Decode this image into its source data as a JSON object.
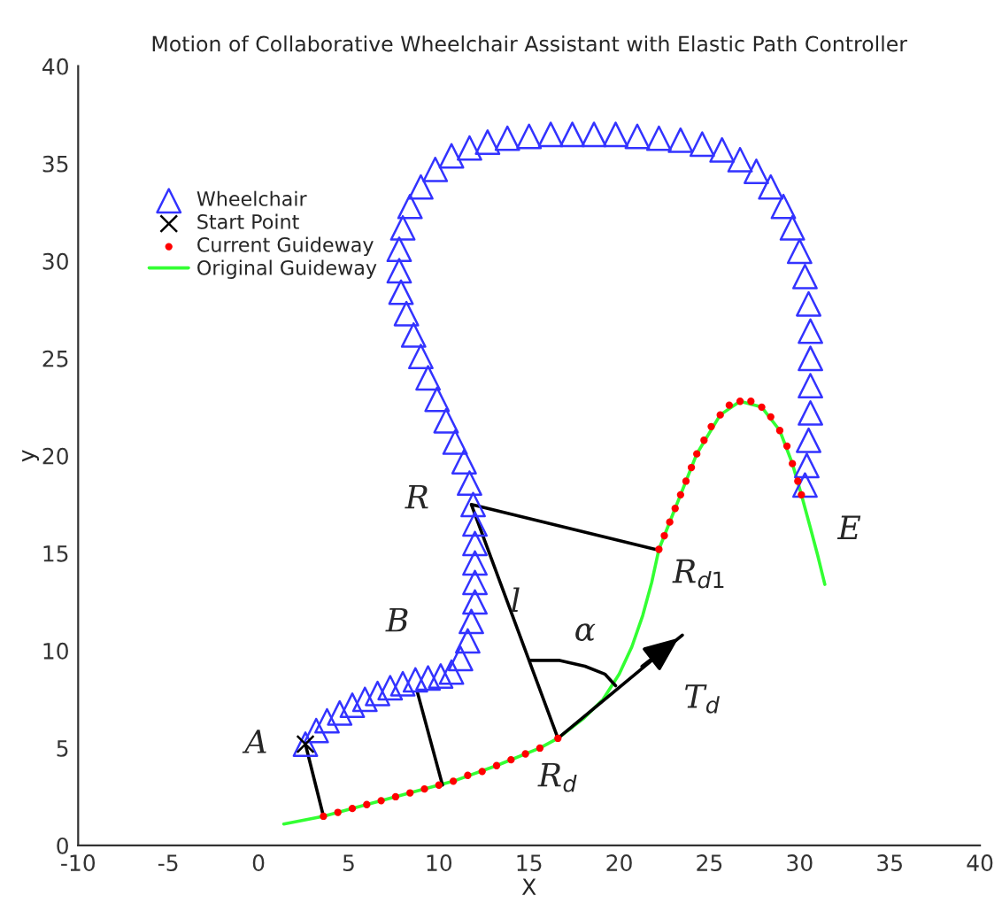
{
  "chart_data": {
    "type": "scatter",
    "title": "Motion of Collaborative Wheelchair Assistant with Elastic Path Controller",
    "xlabel": "X",
    "ylabel": "y",
    "xlim": [
      -10,
      40
    ],
    "ylim": [
      0,
      40
    ],
    "xticks": [
      -10,
      -5,
      0,
      5,
      10,
      15,
      20,
      25,
      30,
      35,
      40
    ],
    "yticks": [
      0,
      5,
      10,
      15,
      20,
      25,
      30,
      35,
      40
    ],
    "legend": "top left",
    "series": [
      {
        "name": "Wheelchair",
        "marker": "triangle",
        "color": "#3333ff",
        "x": [
          2.6,
          3.2,
          3.8,
          4.5,
          5.2,
          5.9,
          6.6,
          7.3,
          8.0,
          8.7,
          9.4,
          10.1,
          10.7,
          11.2,
          11.6,
          11.8,
          12.0,
          12.0,
          12.0,
          12.0,
          12.0,
          11.9,
          11.7,
          11.4,
          10.9,
          10.4,
          9.9,
          9.4,
          9.0,
          8.6,
          8.2,
          7.9,
          7.8,
          7.8,
          8.0,
          8.4,
          9.0,
          9.8,
          10.7,
          11.7,
          12.7,
          13.8,
          15.0,
          16.2,
          17.4,
          18.6,
          19.8,
          21.0,
          22.2,
          23.4,
          24.6,
          25.7,
          26.7,
          27.6,
          28.4,
          29.1,
          29.6,
          30.0,
          30.3,
          30.5,
          30.6,
          30.6,
          30.6,
          30.6,
          30.5,
          30.4,
          30.3
        ],
        "values": [
          5.2,
          5.9,
          6.4,
          6.8,
          7.2,
          7.5,
          7.8,
          8.1,
          8.3,
          8.5,
          8.6,
          8.7,
          8.9,
          9.6,
          10.5,
          11.5,
          12.5,
          13.5,
          14.5,
          15.5,
          16.5,
          17.5,
          18.6,
          19.7,
          20.7,
          21.8,
          22.9,
          24.0,
          25.1,
          26.2,
          27.3,
          28.4,
          29.5,
          30.6,
          31.7,
          32.8,
          33.8,
          34.7,
          35.4,
          35.8,
          36.1,
          36.3,
          36.4,
          36.5,
          36.5,
          36.5,
          36.5,
          36.4,
          36.3,
          36.2,
          36.0,
          35.7,
          35.2,
          34.6,
          33.8,
          32.8,
          31.7,
          30.5,
          29.2,
          27.8,
          26.4,
          25.0,
          23.6,
          22.2,
          20.8,
          19.5,
          18.5
        ]
      },
      {
        "name": "Start Point",
        "marker": "cross",
        "color": "#000000",
        "x": [
          2.6
        ],
        "values": [
          5.2
        ]
      },
      {
        "name": "Current Guideway",
        "marker": "circle",
        "color": "#ff0000",
        "x": [
          3.6,
          4.4,
          5.2,
          6.0,
          6.8,
          7.6,
          8.4,
          9.2,
          10.0,
          10.8,
          11.6,
          12.4,
          13.2,
          14.0,
          14.8,
          15.6,
          16.6,
          22.2,
          22.5,
          22.8,
          23.1,
          23.4,
          23.7,
          24.0,
          24.3,
          24.7,
          25.1,
          25.6,
          26.1,
          26.7,
          27.3,
          27.9,
          28.4,
          28.9,
          29.3,
          29.6,
          29.9,
          30.1
        ],
        "values": [
          1.5,
          1.7,
          1.9,
          2.1,
          2.3,
          2.5,
          2.7,
          2.9,
          3.1,
          3.3,
          3.6,
          3.8,
          4.1,
          4.4,
          4.7,
          5.0,
          5.5,
          15.2,
          15.9,
          16.6,
          17.3,
          18.0,
          18.7,
          19.4,
          20.1,
          20.8,
          21.5,
          22.1,
          22.6,
          22.8,
          22.8,
          22.5,
          22.0,
          21.3,
          20.5,
          19.6,
          18.7,
          18.0
        ]
      },
      {
        "name": "Original Guideway",
        "type": "line",
        "color": "#33ff33",
        "x": [
          1.4,
          3.6,
          6.0,
          8.4,
          10.8,
          13.2,
          15.6,
          16.6,
          18.0,
          19.1,
          20.0,
          20.7,
          21.3,
          21.8,
          22.2,
          23.1,
          24.3,
          25.6,
          26.7,
          27.9,
          28.9,
          29.6,
          30.1,
          30.6,
          31.0,
          31.4
        ],
        "values": [
          1.1,
          1.5,
          2.1,
          2.7,
          3.3,
          4.1,
          5.0,
          5.5,
          6.5,
          7.5,
          8.8,
          10.2,
          11.8,
          13.5,
          15.2,
          17.3,
          20.1,
          22.1,
          22.8,
          22.5,
          21.3,
          19.6,
          18.0,
          16.3,
          14.9,
          13.4
        ]
      },
      {
        "type": "line",
        "color": "#000000",
        "x": [
          2.6,
          3.6
        ],
        "values": [
          5.2,
          1.5
        ]
      },
      {
        "type": "line",
        "color": "#000000",
        "x": [
          8.8,
          10.2
        ],
        "values": [
          7.9,
          3.1
        ]
      },
      {
        "type": "line",
        "color": "#000000",
        "x": [
          22.0,
          11.8,
          16.6
        ],
        "values": [
          15.2,
          17.5,
          5.5
        ]
      },
      {
        "type": "line",
        "color": "#000000",
        "x": [
          15.1,
          16.7,
          18.1,
          19.2,
          19.8
        ],
        "values": [
          9.5,
          9.5,
          9.2,
          8.8,
          8.2
        ]
      },
      {
        "type": "line",
        "color": "#000000",
        "x": [
          16.6,
          23.5
        ],
        "values": [
          5.5,
          10.8
        ]
      }
    ],
    "annotations": [
      {
        "text": "A",
        "x": 2.6,
        "y": 5.2
      },
      {
        "text": "B",
        "x": 8.8,
        "y": 7.9
      },
      {
        "text": "R",
        "x": 11.8,
        "y": 17.5
      },
      {
        "text": "l",
        "x": 11.8,
        "y": 17.5
      },
      {
        "text": "α",
        "x": 18.1,
        "y": 9.2
      },
      {
        "text": "R$_{d}$",
        "x": 16.6,
        "y": 5.5
      },
      {
        "text": "R$_{d1}$",
        "x": 22.0,
        "y": 15.2
      },
      {
        "text": "T$_{d}$",
        "x": 23.5,
        "y": 10.8
      },
      {
        "text": "E",
        "x": 31.4,
        "y": 13.4
      }
    ]
  }
}
